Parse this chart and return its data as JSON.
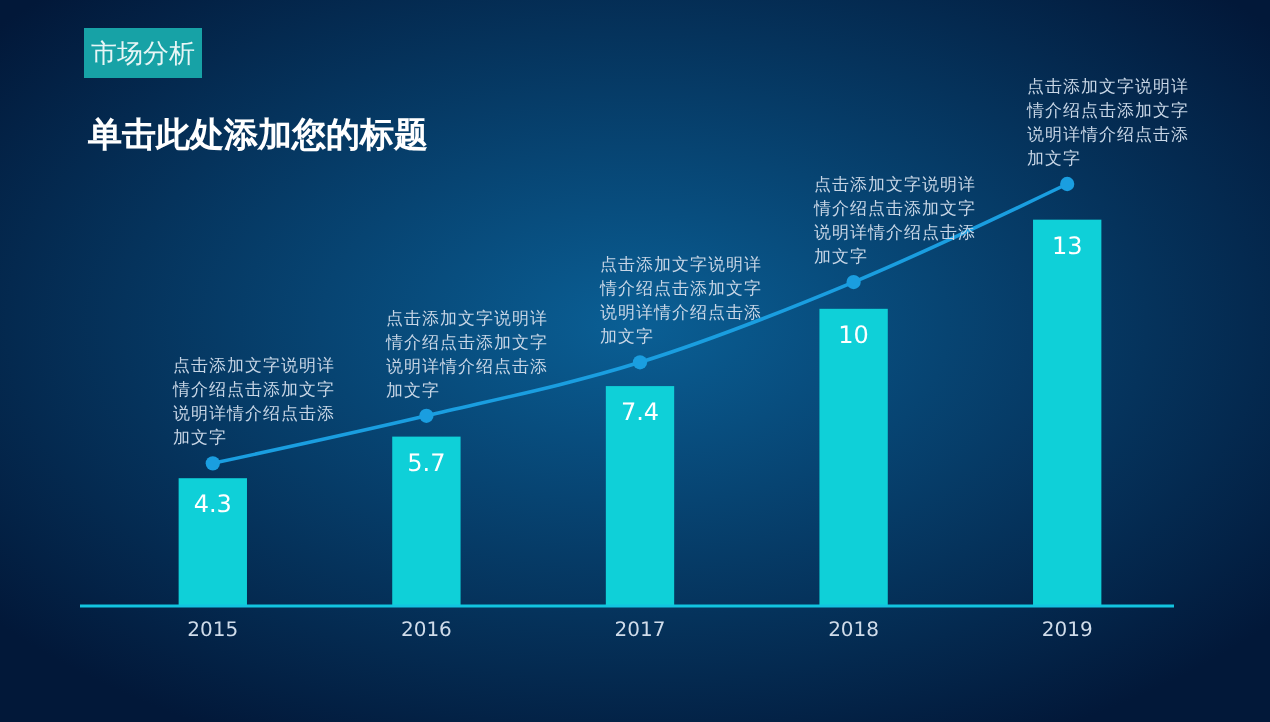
{
  "chart_data": {
    "type": "bar",
    "title": "单击此处添加您的标题",
    "subtitle": "市场分析",
    "categories": [
      "2015",
      "2016",
      "2017",
      "2018",
      "2019"
    ],
    "series": [
      {
        "color": "#0fd0d8",
        "values": [
          4.3,
          5.7,
          7.4,
          10,
          13
        ],
        "value_labels": [
          "4.3",
          "5.7",
          "7.4",
          "10",
          "13"
        ]
      },
      {
        "type": "line",
        "color": "#1a9ee0",
        "values": [
          4.8,
          6.4,
          8.2,
          10.9,
          14.2
        ]
      }
    ],
    "marker": "circle",
    "line_style": "solid",
    "grid": false,
    "annotations": [
      {
        "text": "点击添加文字说明详情介绍点击添加文字说明详情介绍点击添加文字",
        "x": "2015",
        "y": 4.8
      },
      {
        "text": "点击添加文字说明详情介绍点击添加文字说明详情介绍点击添加文字",
        "x": "2016",
        "y": 6.4
      },
      {
        "text": "点击添加文字说明详情介绍点击添加文字说明详情介绍点击添加文字",
        "x": "2017",
        "y": 8.2
      },
      {
        "text": "点击添加文字说明详情介绍点击添加文字说明详情介绍点击添加文字",
        "x": "2018",
        "y": 10.9
      },
      {
        "text": "点击添加文字说明详情介绍点击添加文字说明详情介绍点击添加文字",
        "x": "2019",
        "y": 14.2
      }
    ]
  }
}
